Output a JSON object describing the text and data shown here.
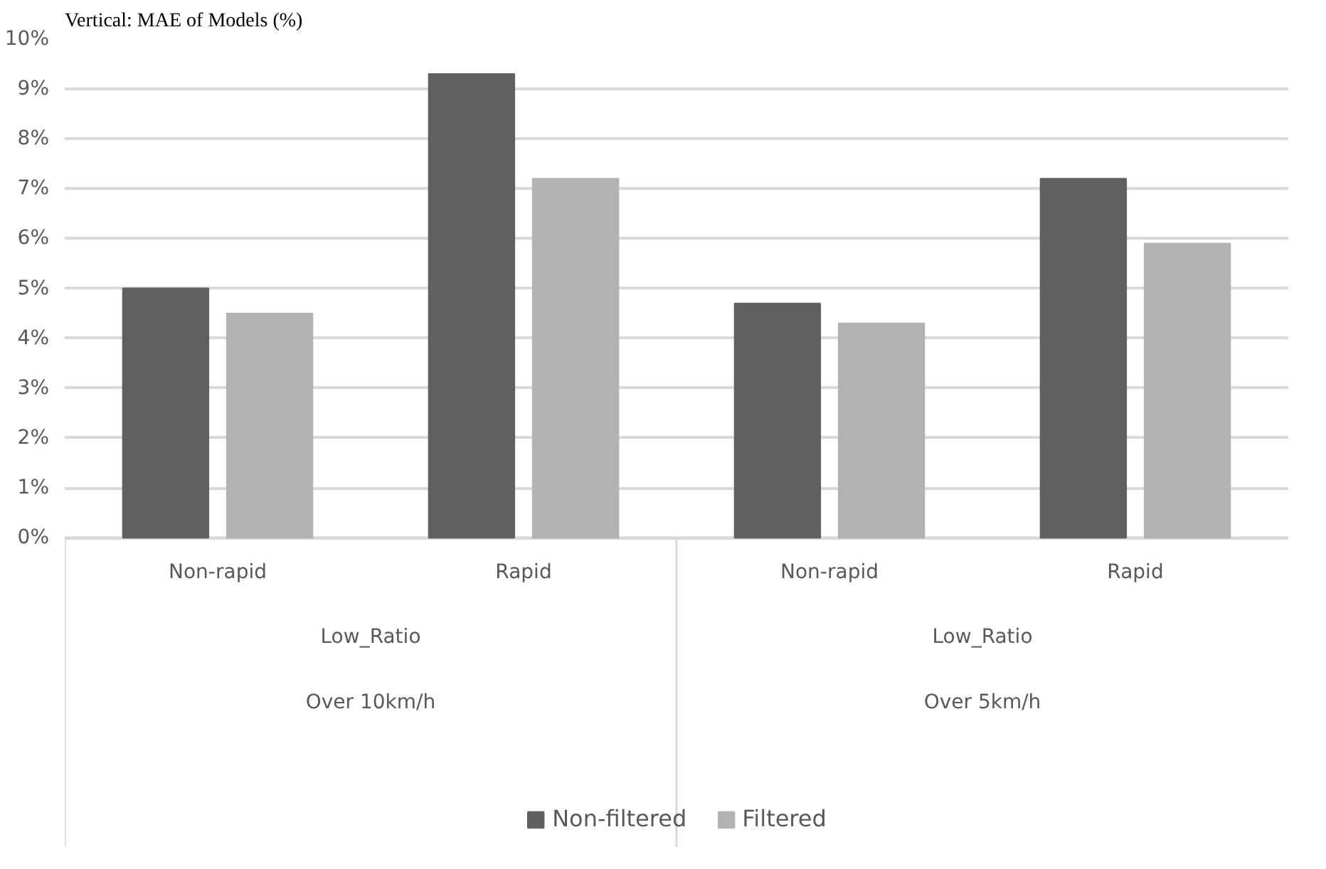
{
  "chart_data": {
    "type": "bar",
    "title": "Vertical: MAE of Models (%)",
    "categories": [
      "Non-rapid",
      "Rapid",
      "Non-rapid",
      "Rapid"
    ],
    "annotations": [
      "Low_Ratio",
      "Over 10km/h",
      "Low_Ratio",
      "Over 5km/h"
    ],
    "series": [
      {
        "name": "Non-filtered",
        "color": "#606060",
        "values": [
          5.0,
          9.3,
          4.7,
          7.2
        ]
      },
      {
        "name": "Filtered",
        "color": "#b2b2b2",
        "values": [
          4.5,
          7.2,
          4.3,
          5.9
        ]
      }
    ],
    "ylim": [
      0,
      10
    ],
    "yticks": [
      {
        "value": 0,
        "label": "0%"
      },
      {
        "value": 1,
        "label": "1%"
      },
      {
        "value": 2,
        "label": "2%"
      },
      {
        "value": 3,
        "label": "3%"
      },
      {
        "value": 4,
        "label": "4%"
      },
      {
        "value": 5,
        "label": "5%"
      },
      {
        "value": 6,
        "label": "6%"
      },
      {
        "value": 7,
        "label": "7%"
      },
      {
        "value": 8,
        "label": "8%"
      },
      {
        "value": 9,
        "label": "9%"
      },
      {
        "value": 10,
        "label": "10%"
      }
    ],
    "grid": "y",
    "legend": "bottom"
  }
}
